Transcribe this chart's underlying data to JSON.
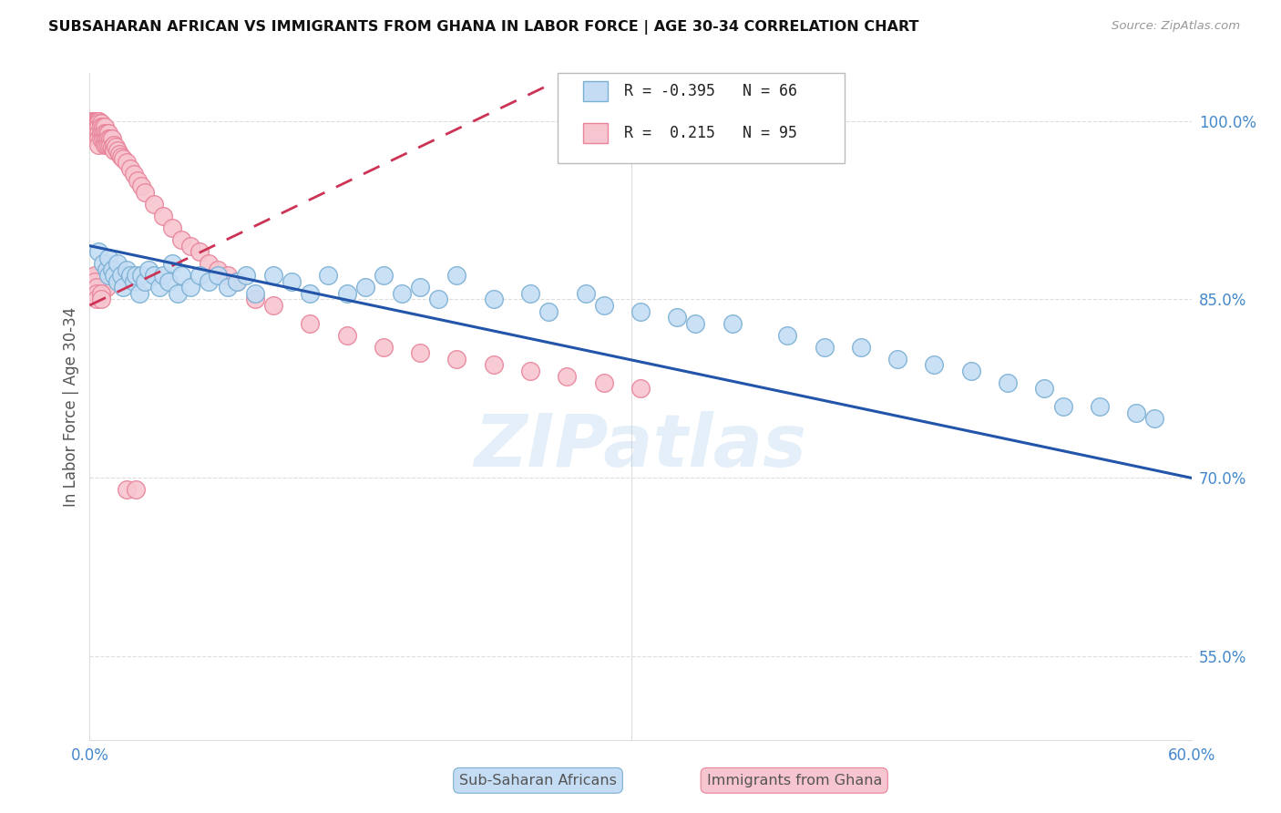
{
  "title": "SUBSAHARAN AFRICAN VS IMMIGRANTS FROM GHANA IN LABOR FORCE | AGE 30-34 CORRELATION CHART",
  "source": "Source: ZipAtlas.com",
  "ylabel": "In Labor Force | Age 30-34",
  "xlim": [
    0.0,
    0.6
  ],
  "ylim": [
    0.48,
    1.04
  ],
  "xticks": [
    0.0,
    0.1,
    0.2,
    0.3,
    0.4,
    0.5,
    0.6
  ],
  "xticklabels": [
    "0.0%",
    "",
    "",
    "",
    "",
    "",
    "60.0%"
  ],
  "yticks_right": [
    1.0,
    0.85,
    0.7,
    0.55
  ],
  "ytick_right_labels": [
    "100.0%",
    "85.0%",
    "70.0%",
    "55.0%"
  ],
  "blue_color": "#c5ddf4",
  "blue_edge": "#7aafd4",
  "pink_color": "#f7c5d0",
  "pink_edge": "#e8849a",
  "trend_blue_color": "#2255aa",
  "trend_pink_color": "#cc3355",
  "R_blue": -0.395,
  "N_blue": 66,
  "R_pink": 0.215,
  "N_pink": 95,
  "legend_label_blue": "Sub-Saharan Africans",
  "legend_label_pink": "Immigrants from Ghana",
  "watermark": "ZIPatlas",
  "blue_scatter_x": [
    0.005,
    0.007,
    0.009,
    0.01,
    0.01,
    0.012,
    0.013,
    0.015,
    0.015,
    0.017,
    0.018,
    0.02,
    0.022,
    0.024,
    0.025,
    0.027,
    0.028,
    0.03,
    0.032,
    0.035,
    0.038,
    0.04,
    0.043,
    0.045,
    0.048,
    0.05,
    0.055,
    0.06,
    0.065,
    0.07,
    0.075,
    0.08,
    0.085,
    0.09,
    0.1,
    0.11,
    0.12,
    0.13,
    0.14,
    0.15,
    0.16,
    0.17,
    0.18,
    0.19,
    0.2,
    0.22,
    0.24,
    0.25,
    0.27,
    0.28,
    0.3,
    0.32,
    0.33,
    0.35,
    0.38,
    0.4,
    0.42,
    0.44,
    0.46,
    0.48,
    0.5,
    0.52,
    0.53,
    0.55,
    0.57,
    0.58
  ],
  "blue_scatter_y": [
    0.89,
    0.88,
    0.875,
    0.87,
    0.885,
    0.875,
    0.87,
    0.88,
    0.865,
    0.87,
    0.86,
    0.875,
    0.87,
    0.865,
    0.87,
    0.855,
    0.87,
    0.865,
    0.875,
    0.87,
    0.86,
    0.87,
    0.865,
    0.88,
    0.855,
    0.87,
    0.86,
    0.87,
    0.865,
    0.87,
    0.86,
    0.865,
    0.87,
    0.855,
    0.87,
    0.865,
    0.855,
    0.87,
    0.855,
    0.86,
    0.87,
    0.855,
    0.86,
    0.85,
    0.87,
    0.85,
    0.855,
    0.84,
    0.855,
    0.845,
    0.84,
    0.835,
    0.83,
    0.83,
    0.82,
    0.81,
    0.81,
    0.8,
    0.795,
    0.79,
    0.78,
    0.775,
    0.76,
    0.76,
    0.755,
    0.75
  ],
  "pink_scatter_x": [
    0.002,
    0.002,
    0.002,
    0.002,
    0.002,
    0.002,
    0.002,
    0.002,
    0.002,
    0.003,
    0.003,
    0.003,
    0.003,
    0.003,
    0.004,
    0.004,
    0.004,
    0.004,
    0.004,
    0.005,
    0.005,
    0.005,
    0.005,
    0.005,
    0.005,
    0.005,
    0.005,
    0.006,
    0.006,
    0.006,
    0.006,
    0.007,
    0.007,
    0.007,
    0.008,
    0.008,
    0.008,
    0.008,
    0.009,
    0.009,
    0.009,
    0.01,
    0.01,
    0.01,
    0.011,
    0.011,
    0.012,
    0.012,
    0.013,
    0.013,
    0.014,
    0.015,
    0.016,
    0.017,
    0.018,
    0.02,
    0.022,
    0.024,
    0.026,
    0.028,
    0.03,
    0.035,
    0.04,
    0.045,
    0.05,
    0.055,
    0.06,
    0.065,
    0.07,
    0.075,
    0.08,
    0.09,
    0.1,
    0.12,
    0.14,
    0.16,
    0.18,
    0.2,
    0.22,
    0.24,
    0.26,
    0.28,
    0.3,
    0.005,
    0.007,
    0.009,
    0.003,
    0.003,
    0.004,
    0.004,
    0.004,
    0.006,
    0.006,
    0.02,
    0.025
  ],
  "pink_scatter_y": [
    1.0,
    1.0,
    1.0,
    1.0,
    1.0,
    1.0,
    1.0,
    1.0,
    0.995,
    1.0,
    1.0,
    1.0,
    0.998,
    0.995,
    1.0,
    1.0,
    0.998,
    0.995,
    0.99,
    1.0,
    1.0,
    1.0,
    0.998,
    0.995,
    0.99,
    0.985,
    0.98,
    0.998,
    0.995,
    0.99,
    0.985,
    0.995,
    0.99,
    0.985,
    0.995,
    0.99,
    0.985,
    0.98,
    0.99,
    0.985,
    0.98,
    0.99,
    0.985,
    0.98,
    0.985,
    0.98,
    0.985,
    0.978,
    0.98,
    0.975,
    0.978,
    0.975,
    0.972,
    0.97,
    0.968,
    0.965,
    0.96,
    0.955,
    0.95,
    0.945,
    0.94,
    0.93,
    0.92,
    0.91,
    0.9,
    0.895,
    0.89,
    0.88,
    0.875,
    0.87,
    0.865,
    0.85,
    0.845,
    0.83,
    0.82,
    0.81,
    0.805,
    0.8,
    0.795,
    0.79,
    0.785,
    0.78,
    0.775,
    0.87,
    0.865,
    0.86,
    0.87,
    0.865,
    0.86,
    0.855,
    0.85,
    0.855,
    0.85,
    0.69,
    0.69
  ]
}
